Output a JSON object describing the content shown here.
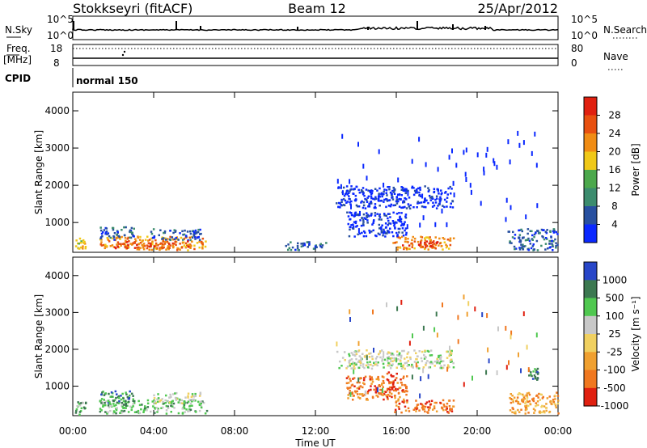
{
  "header": {
    "title": "Stokkseyri (fitACF)",
    "beam": "Beam 12",
    "date": "25/Apr/2012"
  },
  "top_panels": {
    "nsky_label": "N.Sky",
    "nsky_axis": [
      "10^5",
      "10^0"
    ],
    "nsearch_label": "N.Search",
    "nsearch_axis": [
      "10^5",
      "10^0"
    ],
    "freq_label": "Freq.",
    "freq_unit": "[MHz]",
    "freq_axis": [
      "18",
      "8"
    ],
    "nave_label": "Nave",
    "nave_axis": [
      "80",
      "0"
    ],
    "cpid_label": "CPID",
    "cpid_value": "normal 150"
  },
  "chart_data": [
    {
      "type": "heatmap",
      "title": "",
      "xlabel": "Time UT",
      "ylabel": "Slant Range [km]",
      "x_ticks": [
        "00:00",
        "04:00",
        "08:00",
        "12:00",
        "16:00",
        "20:00",
        "00:00"
      ],
      "y_ticks": [
        1000,
        2000,
        3000,
        4000
      ],
      "ylim": [
        200,
        4500
      ],
      "colorbar": {
        "label": "Power [dB]",
        "ticks": [
          "4",
          "8",
          "12",
          "16",
          "20",
          "24",
          "28"
        ],
        "colors": [
          "#0a28ff",
          "#2850a0",
          "#3c8c6e",
          "#4ca84c",
          "#f0c818",
          "#f08c14",
          "#e85010",
          "#e02010"
        ]
      },
      "clusters": [
        {
          "t0": 0.1,
          "t1": 0.6,
          "r0": 250,
          "r1": 600,
          "value_class": 4
        },
        {
          "t0": 1.3,
          "t1": 6.6,
          "r0": 280,
          "r1": 650,
          "value_class": 5
        },
        {
          "t0": 1.3,
          "t1": 3.0,
          "r0": 550,
          "r1": 900,
          "value_class": 1
        },
        {
          "t0": 3.8,
          "t1": 6.3,
          "r0": 550,
          "r1": 850,
          "value_class": 1
        },
        {
          "t0": 2.0,
          "t1": 6.0,
          "r0": 330,
          "r1": 520,
          "value_class": 6
        },
        {
          "t0": 15.8,
          "t1": 18.8,
          "r0": 300,
          "r1": 650,
          "value_class": 5
        },
        {
          "t0": 16.2,
          "t1": 18.0,
          "r0": 350,
          "r1": 520,
          "value_class": 7
        },
        {
          "t0": 13.0,
          "t1": 18.8,
          "r0": 1400,
          "r1": 2000,
          "value_class": 0
        },
        {
          "t0": 13.5,
          "t1": 16.5,
          "r0": 650,
          "r1": 1300,
          "value_class": 0
        },
        {
          "t0": 21.5,
          "t1": 24.0,
          "r0": 280,
          "r1": 850,
          "value_class": 1
        },
        {
          "t0": 10.5,
          "t1": 12.5,
          "r0": 280,
          "r1": 500,
          "value_class": 1
        }
      ]
    },
    {
      "type": "heatmap",
      "title": "",
      "xlabel": "Time UT",
      "ylabel": "Slant Range [km]",
      "x_ticks": [
        "00:00",
        "04:00",
        "08:00",
        "12:00",
        "16:00",
        "20:00",
        "00:00"
      ],
      "y_ticks": [
        1000,
        2000,
        3000,
        4000
      ],
      "ylim": [
        200,
        4500
      ],
      "colorbar": {
        "label": "Velocity [m s⁻¹]",
        "ticks": [
          "1000",
          "500",
          "100",
          "25",
          "-25",
          "-100",
          "-500",
          "-1000"
        ],
        "colors": [
          "#2846c8",
          "#3c7850",
          "#50c850",
          "#c8c8c8",
          "#f0d060",
          "#f0a030",
          "#f07820",
          "#e02010"
        ]
      },
      "clusters": [
        {
          "t0": 0.1,
          "t1": 0.6,
          "r0": 250,
          "r1": 600,
          "value_class": 2
        },
        {
          "t0": 1.3,
          "t1": 6.6,
          "r0": 280,
          "r1": 650,
          "value_class": 2
        },
        {
          "t0": 1.3,
          "t1": 3.0,
          "r0": 550,
          "r1": 900,
          "value_class": 1
        },
        {
          "t0": 3.8,
          "t1": 6.3,
          "r0": 550,
          "r1": 850,
          "value_class": 3
        },
        {
          "t0": 15.8,
          "t1": 18.8,
          "r0": 300,
          "r1": 650,
          "value_class": 6
        },
        {
          "t0": 13.0,
          "t1": 18.8,
          "r0": 1500,
          "r1": 2000,
          "value_class": 3
        },
        {
          "t0": 13.5,
          "t1": 16.5,
          "r0": 650,
          "r1": 1300,
          "value_class": 6
        },
        {
          "t0": 15.5,
          "t1": 16.0,
          "r0": 900,
          "r1": 1400,
          "value_class": 7
        },
        {
          "t0": 21.5,
          "t1": 24.0,
          "r0": 280,
          "r1": 850,
          "value_class": 5
        },
        {
          "t0": 22.5,
          "t1": 23.0,
          "r0": 1200,
          "r1": 1500,
          "value_class": 1
        }
      ]
    }
  ]
}
